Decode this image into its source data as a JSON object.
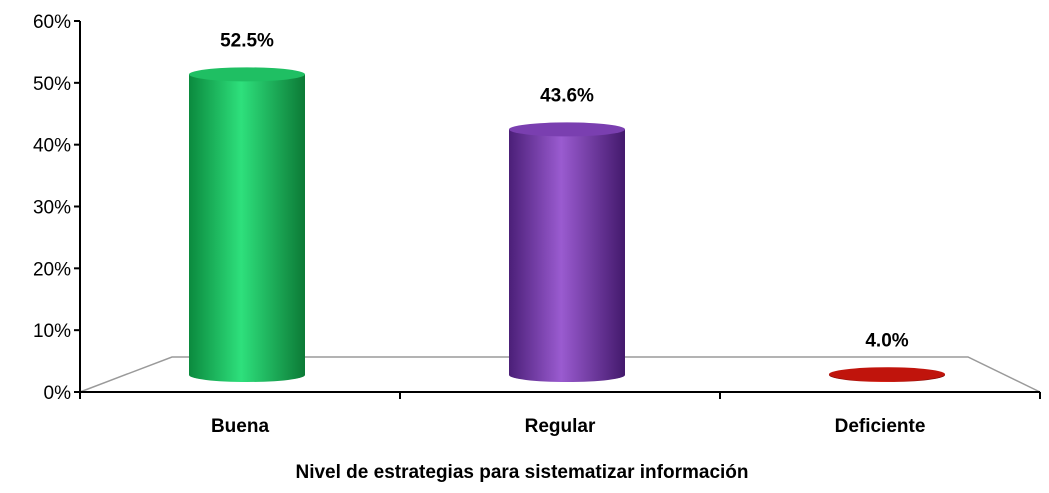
{
  "chart_data": {
    "type": "bar",
    "title": "",
    "xlabel": "Nivel de estrategias para sistematizar información",
    "ylabel": "",
    "ylim": [
      0,
      60
    ],
    "yticks": [
      0,
      10,
      20,
      30,
      40,
      50,
      60
    ],
    "ytick_labels": [
      "0%",
      "10%",
      "20%",
      "30%",
      "40%",
      "50%",
      "60%"
    ],
    "categories": [
      "Buena",
      "Regular",
      "Deficiente"
    ],
    "values": [
      52.5,
      43.6,
      4.0
    ],
    "value_labels": [
      "52.5%",
      "43.6%",
      "4.0%"
    ],
    "colors": [
      "#1fbf63",
      "#7a3fb0",
      "#c0140c"
    ],
    "grid": false,
    "legend": "none",
    "style": "3d-cylinder"
  }
}
